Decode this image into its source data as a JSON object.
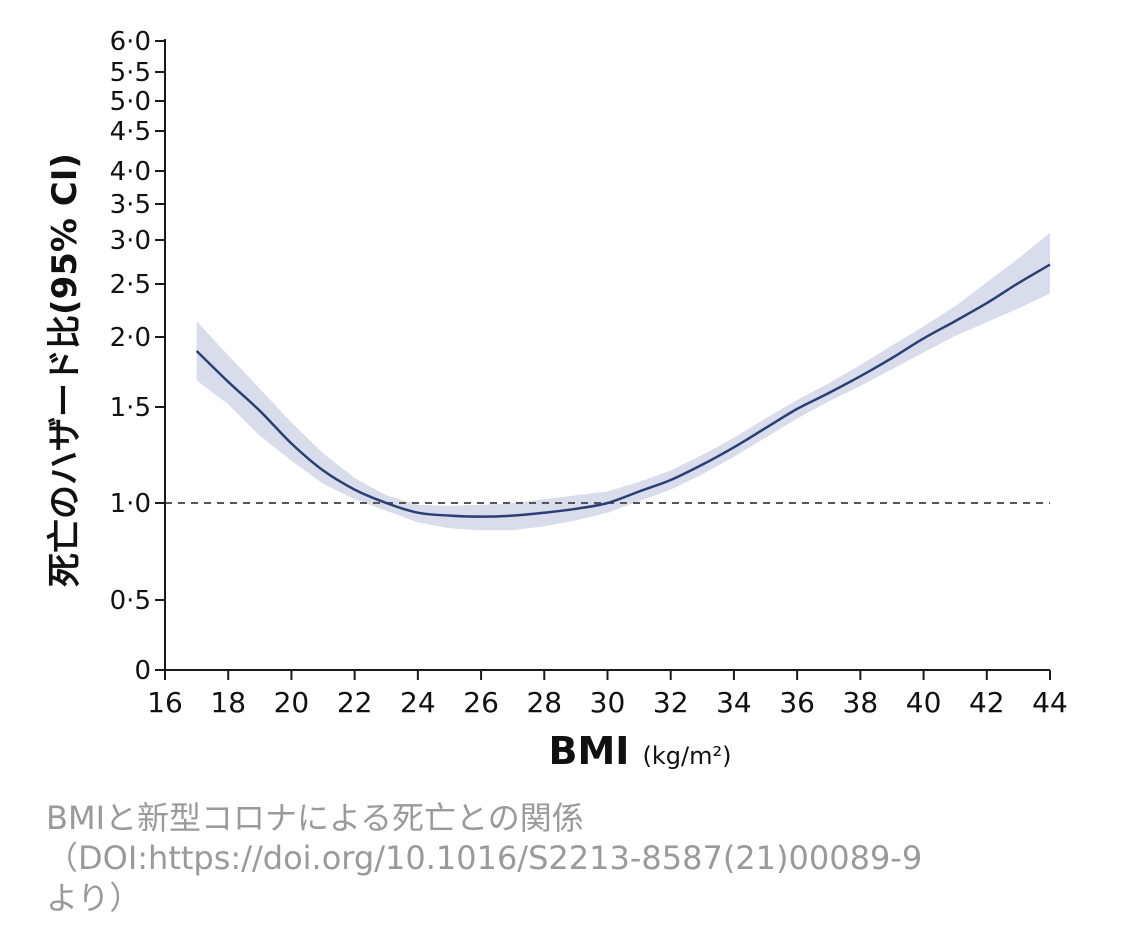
{
  "chart_data": {
    "type": "line",
    "title": "",
    "xlabel": "BMI",
    "xlabel_unit": "(kg/m²)",
    "ylabel": "死亡のハザード比(95% CI)",
    "xlim": [
      16,
      44
    ],
    "ylim": [
      0,
      6.0
    ],
    "x_ticks": [
      "16",
      "18",
      "20",
      "22",
      "24",
      "26",
      "28",
      "30",
      "32",
      "34",
      "36",
      "38",
      "40",
      "42",
      "44"
    ],
    "y_ticks": [
      "0",
      "0·5",
      "1·0",
      "1·5",
      "2·0",
      "2·5",
      "3·0",
      "3·5",
      "4·0",
      "4·5",
      "5·0",
      "5·5",
      "6·0"
    ],
    "y_scale": "log-like (compressed above 1.0)",
    "reference_line": {
      "y": 1.0,
      "style": "dashed"
    },
    "series": [
      {
        "x": [
          17,
          18,
          19,
          20,
          21,
          22,
          23,
          24,
          25,
          26,
          27,
          28,
          29,
          30,
          31,
          32,
          33,
          34,
          35,
          36,
          37,
          38,
          39,
          40,
          41,
          42,
          43,
          44
        ],
        "y": [
          1.9,
          1.68,
          1.48,
          1.31,
          1.17,
          1.07,
          1.0,
          0.95,
          0.935,
          0.93,
          0.935,
          0.95,
          0.97,
          1.0,
          1.06,
          1.12,
          1.2,
          1.29,
          1.39,
          1.49,
          1.6,
          1.72,
          1.85,
          1.99,
          2.15,
          2.32,
          2.51,
          2.72
        ],
        "ci_lower": [
          1.69,
          1.52,
          1.35,
          1.22,
          1.1,
          1.02,
          0.96,
          0.9,
          0.87,
          0.86,
          0.86,
          0.88,
          0.91,
          0.95,
          1.01,
          1.07,
          1.15,
          1.24,
          1.34,
          1.44,
          1.54,
          1.65,
          1.77,
          1.89,
          2.01,
          2.14,
          2.27,
          2.41
        ],
        "ci_upper": [
          2.15,
          1.87,
          1.63,
          1.42,
          1.26,
          1.13,
          1.04,
          0.99,
          0.985,
          0.99,
          1.0,
          1.02,
          1.04,
          1.06,
          1.11,
          1.17,
          1.25,
          1.34,
          1.44,
          1.55,
          1.67,
          1.8,
          1.94,
          2.1,
          2.29,
          2.52,
          2.79,
          3.1
        ]
      }
    ],
    "grid": false,
    "colors": {
      "line": "#2a3f75",
      "band": "#d9dcea",
      "axis": "#1a1a1a",
      "reference": "#555555"
    }
  },
  "caption": {
    "line1": "BMIと新型コロナによる死亡との関係",
    "line2": "（DOI:https://doi.org/10.1016/S2213-8587(21)00089-9",
    "line3": "より）"
  }
}
